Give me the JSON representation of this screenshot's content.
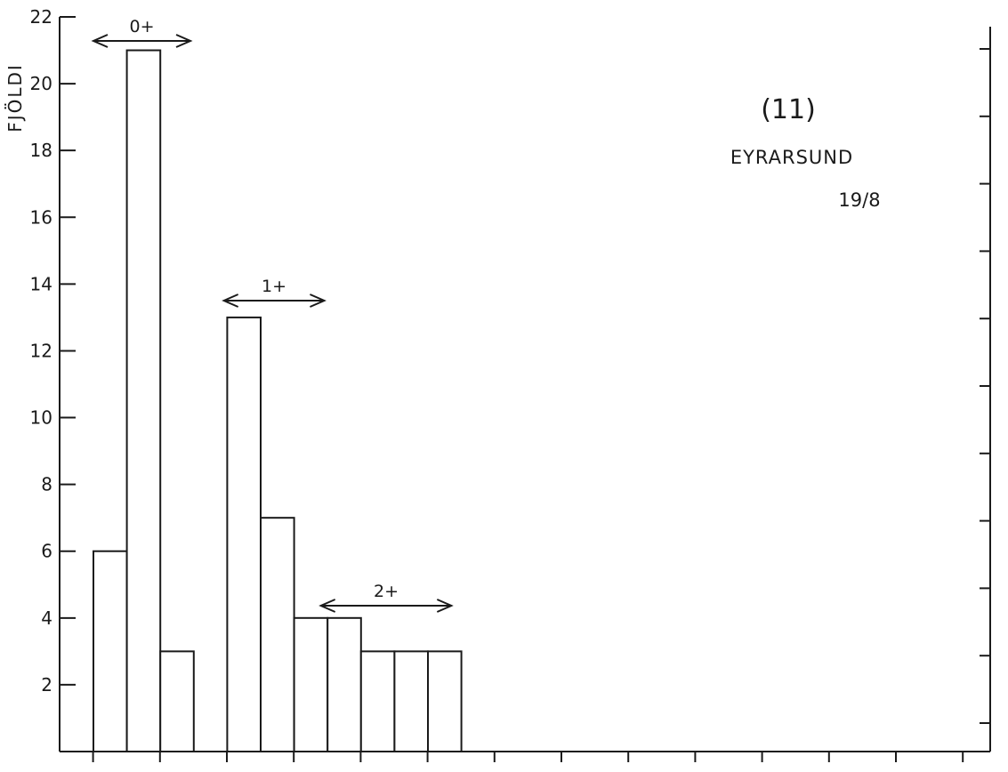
{
  "chart_data": {
    "type": "bar",
    "ylabel": "FJÖLDI",
    "title": "(11)",
    "subtitle": "EYRARSUND",
    "date": "19/8",
    "yticks": [
      2,
      4,
      6,
      8,
      10,
      12,
      14,
      16,
      18,
      20,
      22
    ],
    "ylim": [
      0,
      22
    ],
    "bar_slots": 14,
    "values": [
      6,
      21,
      3,
      null,
      13,
      7,
      4,
      4,
      3,
      3,
      3,
      null,
      null,
      null
    ],
    "age_groups": [
      {
        "label": "0+",
        "from_slot": 0.3,
        "to_slot": 3.2
      },
      {
        "label": "1+",
        "from_slot": 4.2,
        "to_slot": 7.2
      },
      {
        "label": "2+",
        "from_slot": 7.1,
        "to_slot": 11.0
      }
    ],
    "x_tick_slots": [
      1,
      3,
      5,
      7,
      9,
      11,
      13,
      15,
      17,
      19,
      21,
      23,
      25,
      27
    ],
    "grid": false
  }
}
